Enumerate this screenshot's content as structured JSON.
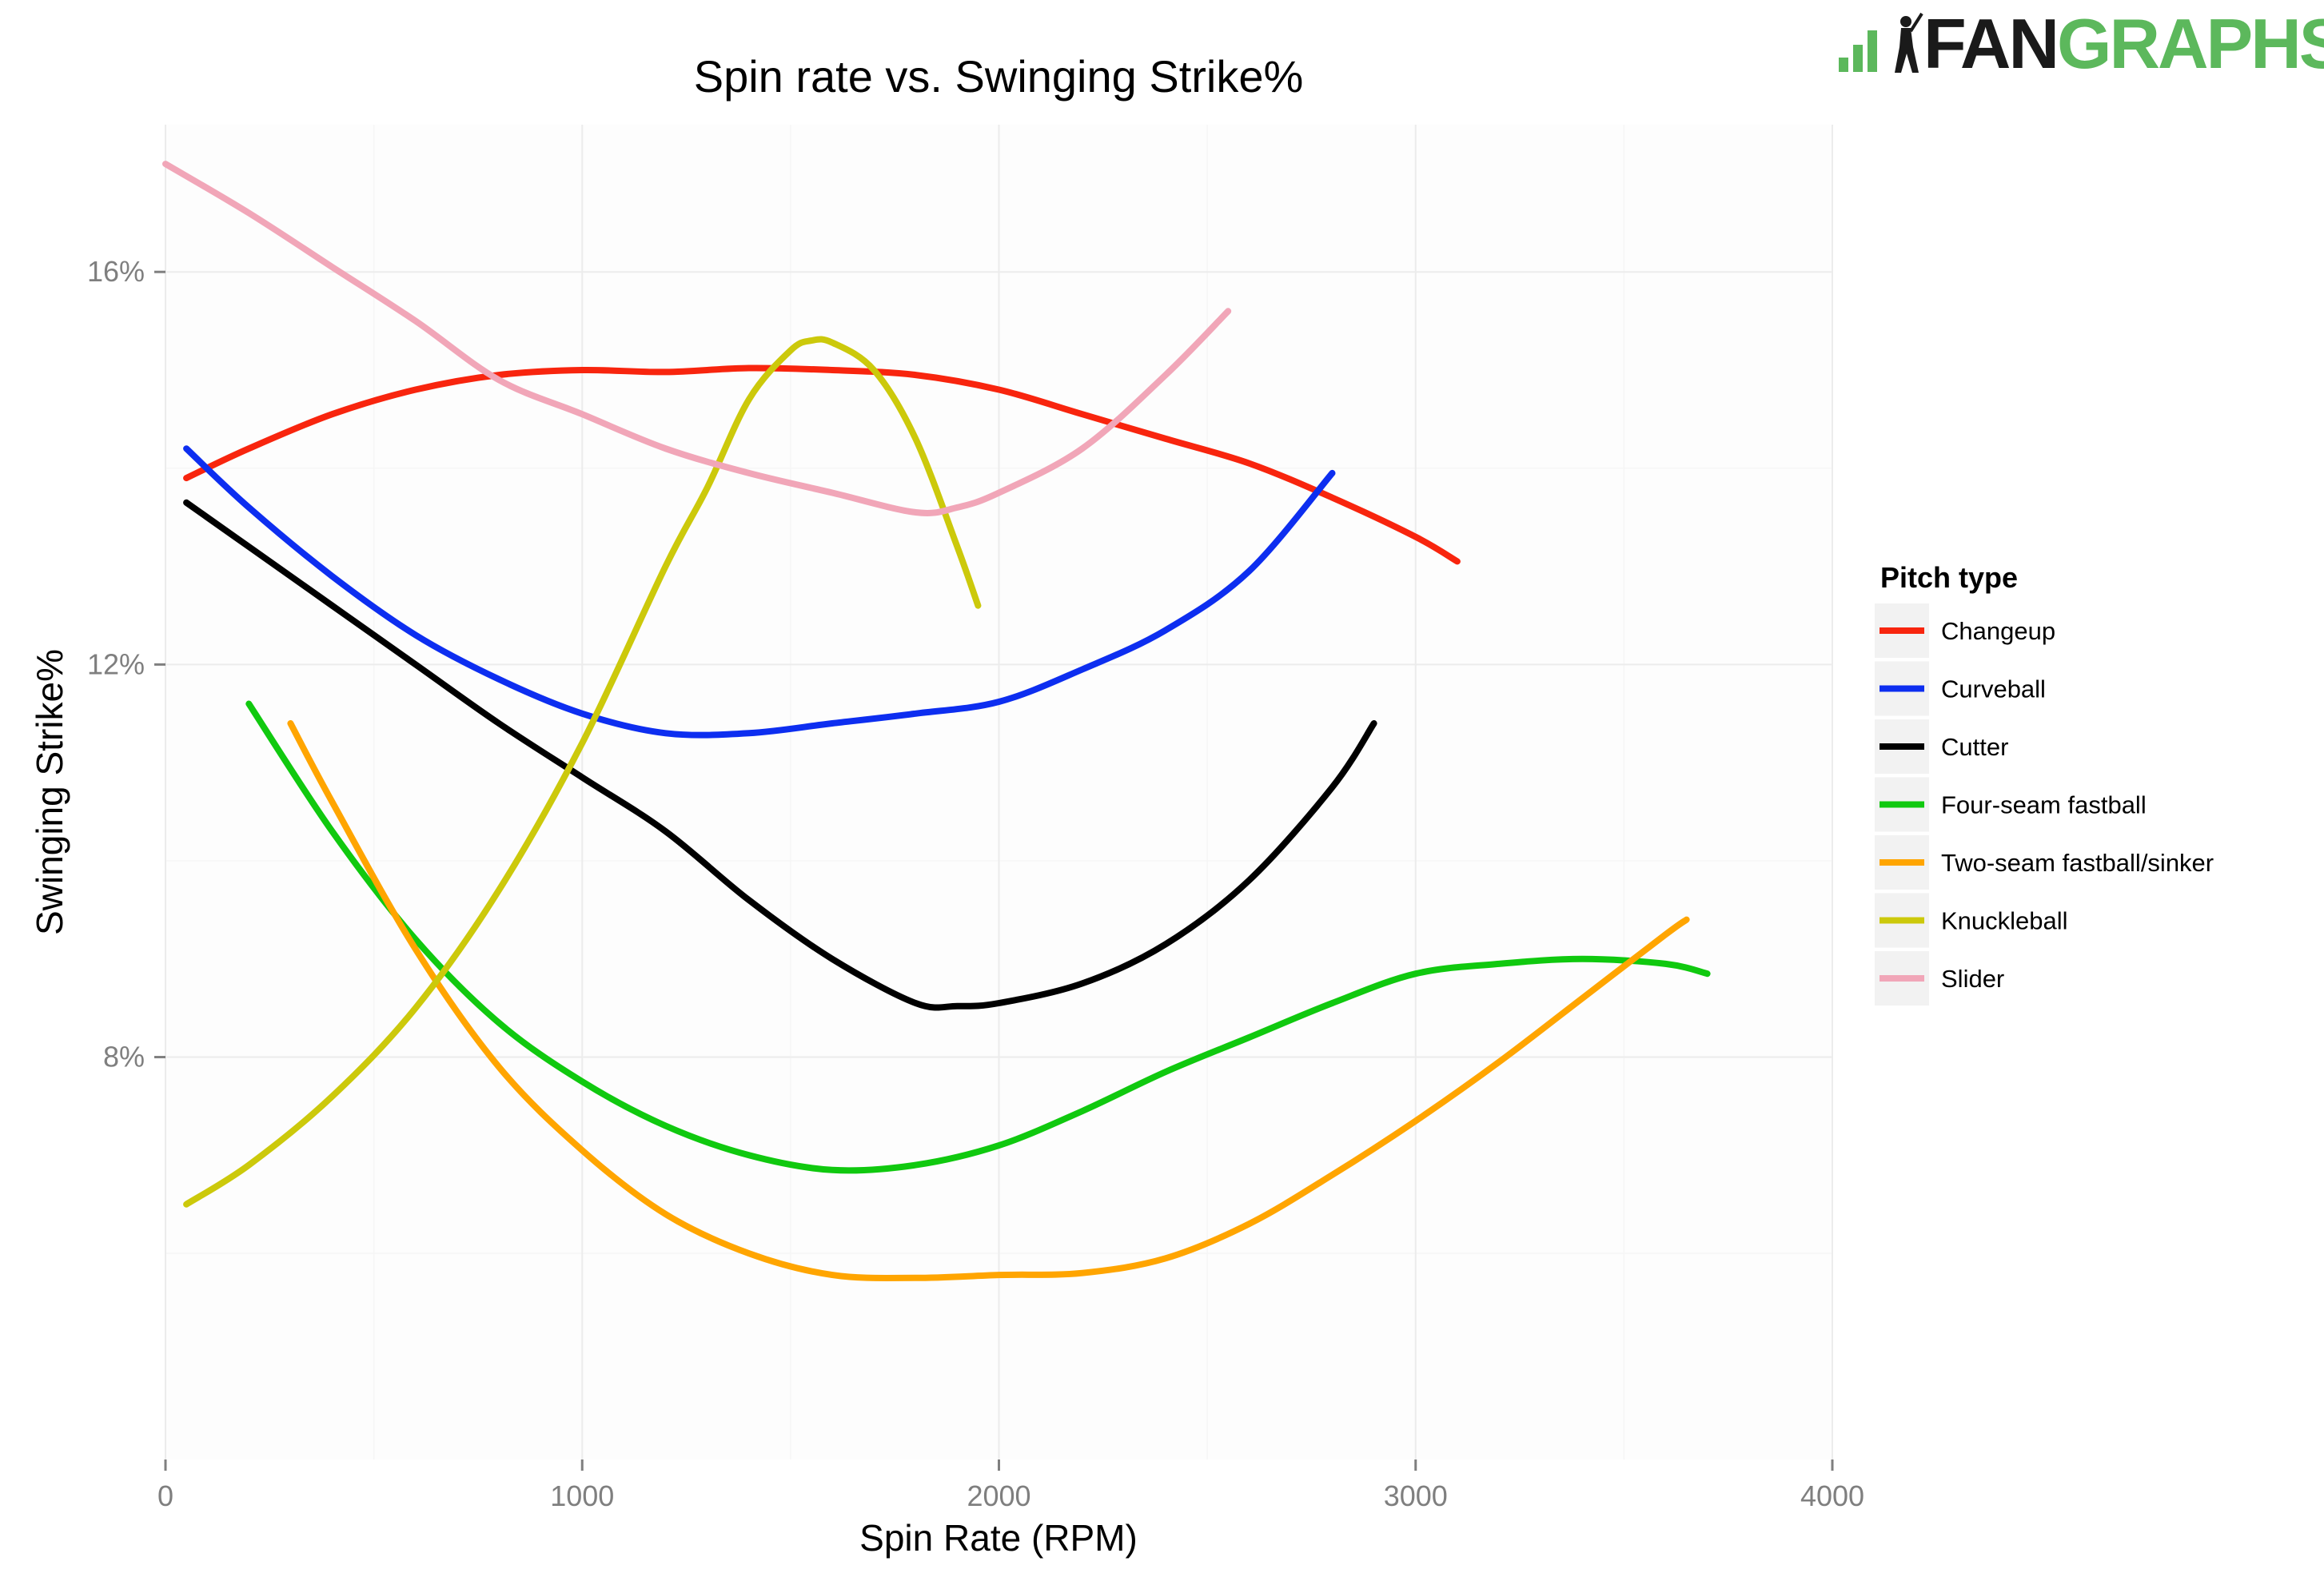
{
  "logo": {
    "part1": "FAN",
    "part2": "GRAPHS"
  },
  "chart_data": {
    "type": "line",
    "title": "Spin rate vs. Swinging Strike%",
    "xlabel": "Spin Rate (RPM)",
    "ylabel": "Swinging Strike%",
    "xlim": [
      0,
      4000
    ],
    "ylim": [
      3.9,
      17.5
    ],
    "x_ticks": [
      0,
      1000,
      2000,
      3000,
      4000
    ],
    "x_tick_labels": [
      "0",
      "1000",
      "2000",
      "3000",
      "4000"
    ],
    "y_ticks": [
      8,
      12,
      16
    ],
    "y_tick_labels": [
      "8%",
      "12%",
      "16%"
    ],
    "grid": true,
    "legend": {
      "title": "Pitch type",
      "position": "right"
    },
    "series": [
      {
        "name": "Changeup",
        "color": "#f8250e",
        "x": [
          50,
          200,
          400,
          600,
          800,
          1000,
          1200,
          1400,
          1600,
          1800,
          2000,
          2200,
          2400,
          2600,
          2800,
          3000,
          3100
        ],
        "y": [
          13.9,
          14.2,
          14.55,
          14.8,
          14.95,
          15.0,
          14.98,
          15.02,
          15.0,
          14.95,
          14.8,
          14.55,
          14.3,
          14.05,
          13.7,
          13.3,
          13.05
        ]
      },
      {
        "name": "Curveball",
        "color": "#0d2ef0",
        "x": [
          50,
          200,
          400,
          600,
          800,
          1000,
          1200,
          1400,
          1600,
          1800,
          2000,
          2200,
          2400,
          2600,
          2800
        ],
        "y": [
          14.2,
          13.6,
          12.9,
          12.3,
          11.85,
          11.5,
          11.3,
          11.3,
          11.4,
          11.5,
          11.62,
          11.95,
          12.35,
          12.95,
          13.95
        ]
      },
      {
        "name": "Cutter",
        "color": "#000000",
        "x": [
          50,
          200,
          400,
          600,
          800,
          1000,
          1200,
          1400,
          1600,
          1800,
          1900,
          2000,
          2200,
          2400,
          2600,
          2800,
          2900
        ],
        "y": [
          13.65,
          13.2,
          12.6,
          12.0,
          11.4,
          10.85,
          10.3,
          9.6,
          9.0,
          8.55,
          8.52,
          8.55,
          8.75,
          9.15,
          9.8,
          10.75,
          11.4
        ]
      },
      {
        "name": "Four-seam fastball",
        "color": "#10c90f",
        "x": [
          200,
          400,
          600,
          800,
          1000,
          1200,
          1400,
          1600,
          1800,
          2000,
          2200,
          2400,
          2600,
          2800,
          3000,
          3200,
          3400,
          3600,
          3700
        ],
        "y": [
          11.6,
          10.3,
          9.2,
          8.35,
          7.75,
          7.3,
          7.0,
          6.85,
          6.9,
          7.1,
          7.45,
          7.85,
          8.2,
          8.55,
          8.85,
          8.95,
          9.0,
          8.95,
          8.85
        ]
      },
      {
        "name": "Two-seam fastball/sinker",
        "color": "#ffa500",
        "x": [
          300,
          400,
          600,
          800,
          1000,
          1200,
          1400,
          1600,
          1800,
          2000,
          2200,
          2400,
          2600,
          2800,
          3000,
          3200,
          3400,
          3600,
          3650
        ],
        "y": [
          11.4,
          10.6,
          9.1,
          7.9,
          7.05,
          6.4,
          6.0,
          5.78,
          5.75,
          5.78,
          5.8,
          5.95,
          6.3,
          6.8,
          7.35,
          7.95,
          8.6,
          9.25,
          9.4
        ]
      },
      {
        "name": "Knuckleball",
        "color": "#ccc90b",
        "x": [
          50,
          200,
          400,
          600,
          800,
          1000,
          1200,
          1300,
          1400,
          1500,
          1550,
          1600,
          1700,
          1800,
          1900,
          1950
        ],
        "y": [
          6.5,
          6.9,
          7.6,
          8.5,
          9.7,
          11.2,
          13.0,
          13.8,
          14.7,
          15.2,
          15.3,
          15.28,
          15.0,
          14.3,
          13.2,
          12.6
        ]
      },
      {
        "name": "Slider",
        "color": "#f1a6b8",
        "x": [
          0,
          200,
          400,
          600,
          800,
          1000,
          1200,
          1400,
          1600,
          1800,
          1900,
          2000,
          2200,
          2400,
          2550
        ],
        "y": [
          17.1,
          16.6,
          16.05,
          15.5,
          14.9,
          14.55,
          14.2,
          13.95,
          13.75,
          13.55,
          13.6,
          13.75,
          14.2,
          14.95,
          15.6
        ]
      }
    ]
  }
}
